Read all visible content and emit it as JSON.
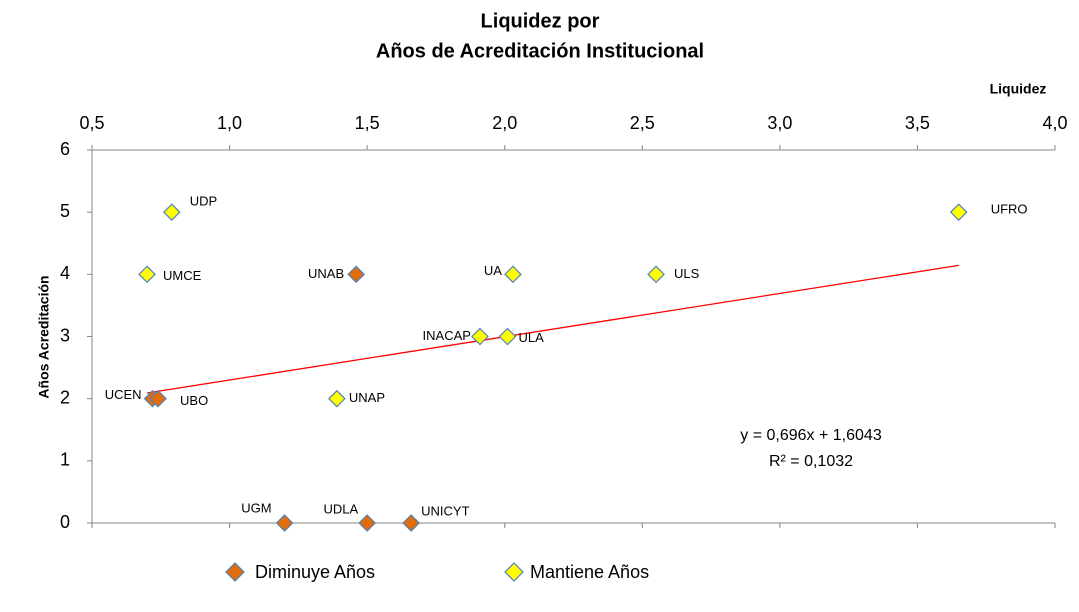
{
  "chart_data": {
    "type": "scatter",
    "title": "Liquidez por",
    "subtitle": "Años de Acreditación Institucional",
    "x_label": "Liquidez",
    "y_label": "Años Acreditación",
    "xlim": [
      0.5,
      4.0
    ],
    "ylim": [
      0,
      6
    ],
    "xticks": [
      {
        "value": 0.5,
        "label": "0,5"
      },
      {
        "value": 1.0,
        "label": "1,0"
      },
      {
        "value": 1.5,
        "label": "1,5"
      },
      {
        "value": 2.0,
        "label": "2,0"
      },
      {
        "value": 2.5,
        "label": "2,5"
      },
      {
        "value": 3.0,
        "label": "3,0"
      },
      {
        "value": 3.5,
        "label": "3,5"
      },
      {
        "value": 4.0,
        "label": "4,0"
      }
    ],
    "yticks": [
      0,
      1,
      2,
      3,
      4,
      5,
      6
    ],
    "grid": false,
    "legend": "bottom",
    "series": [
      {
        "name": "Diminuye Años",
        "color": "#e36c0a",
        "labels": [
          "UCEN",
          "UBO",
          "UNAB",
          "UGM",
          "UDLA",
          "UNICYT"
        ],
        "x": [
          0.72,
          0.74,
          1.46,
          1.2,
          1.5,
          1.66
        ],
        "values": [
          2,
          2,
          4,
          0,
          0,
          0
        ]
      },
      {
        "name": "Mantiene Años",
        "color": "#ffff00",
        "labels": [
          "UDP",
          "UMCE",
          "UA",
          "ULS",
          "UFRO",
          "INACAP",
          "ULA",
          "UNAP"
        ],
        "x": [
          0.79,
          0.7,
          2.03,
          2.55,
          3.65,
          1.91,
          2.01,
          1.39
        ],
        "values": [
          5,
          4,
          4,
          4,
          5,
          3,
          3,
          2
        ]
      }
    ],
    "trendline": {
      "slope": 0.696,
      "intercept": 1.6043,
      "color": "#ff0000",
      "equation": "y = 0,696x + 1,6043",
      "r2": "R² = 0,1032"
    }
  }
}
